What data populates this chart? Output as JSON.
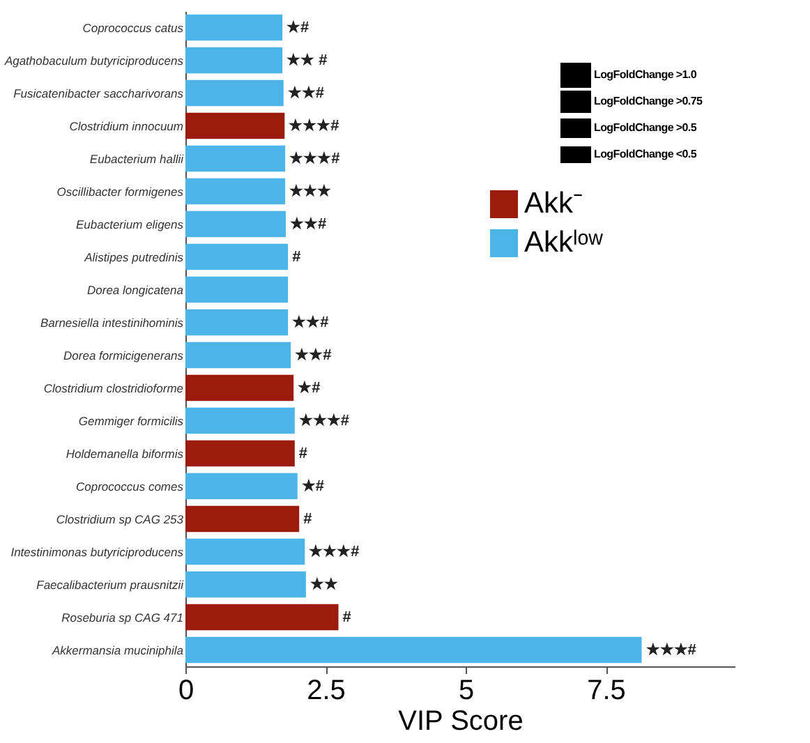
{
  "chart_data": {
    "type": "bar",
    "orientation": "horizontal",
    "xlabel": "VIP Score",
    "categories": [
      "Coprococcus catus",
      "Agathobaculum butyriciproducens",
      "Fusicatenibacter saccharivorans",
      "Clostridium innocuum",
      "Eubacterium hallii",
      "Oscillibacter formigenes",
      "Eubacterium eligens",
      "Alistipes putredinis",
      "Dorea longicatena",
      "Barnesiella intestinihominis",
      "Dorea formicigenerans",
      "Clostridium clostridioforme",
      "Gemmiger formicilis",
      "Holdemanella biformis",
      "Coprococcus comes",
      "Clostridium sp CAG 253",
      "Intestinimonas butyriciproducens",
      "Faecalibacterium prausnitzii",
      "Roseburia sp CAG 471",
      "Akkermansia muciniphila"
    ],
    "series": [
      {
        "name": "Akk⁻",
        "color": "#9b1c0c",
        "values": [
          null,
          null,
          null,
          1.77,
          null,
          null,
          null,
          null,
          null,
          null,
          null,
          1.93,
          null,
          1.95,
          null,
          2.03,
          null,
          null,
          2.73,
          null
        ]
      },
      {
        "name": "Akkˡᵒʷ",
        "color": "#4cb4e6",
        "values": [
          1.73,
          1.73,
          1.75,
          null,
          1.78,
          1.78,
          1.79,
          1.83,
          1.83,
          1.83,
          1.88,
          null,
          1.95,
          null,
          2.0,
          null,
          2.13,
          2.15,
          null,
          8.14
        ]
      }
    ],
    "xlim": [
      0,
      9.8
    ],
    "xticks": [
      0,
      2.5,
      5,
      7.5
    ],
    "legend": "top right",
    "annotations": [
      "LogFoldChange >1.0",
      "LogFoldChange >0.75",
      "LogFoldChange >0.5",
      "LogFoldChange <0.5",
      {
        "text": "★#",
        "x": 1.73,
        "y": "Coprococcus catus"
      },
      {
        "text": "★★ #",
        "x": 1.73,
        "y": "Agathobaculum butyriciproducens"
      },
      {
        "text": "★★#",
        "x": 1.75,
        "y": "Fusicatenibacter saccharivorans"
      },
      {
        "text": "★★★#",
        "x": 1.77,
        "y": "Clostridium innocuum"
      },
      {
        "text": "★★★#",
        "x": 1.78,
        "y": "Eubacterium hallii"
      },
      {
        "text": "★★★",
        "x": 1.78,
        "y": "Oscillibacter formigenes"
      },
      {
        "text": "★★#",
        "x": 1.79,
        "y": "Eubacterium eligens"
      },
      {
        "text": "#",
        "x": 1.83,
        "y": "Alistipes putredinis"
      },
      {
        "text": "★★#",
        "x": 1.83,
        "y": "Barnesiella intestinihominis"
      },
      {
        "text": "★★#",
        "x": 1.88,
        "y": "Dorea formicigenerans"
      },
      {
        "text": "★#",
        "x": 1.93,
        "y": "Clostridium clostridioforme"
      },
      {
        "text": "★★★#",
        "x": 1.95,
        "y": "Gemmiger formicilis"
      },
      {
        "text": "#",
        "x": 1.95,
        "y": "Holdemanella biformis"
      },
      {
        "text": "★#",
        "x": 2.0,
        "y": "Coprococcus comes"
      },
      {
        "text": "#",
        "x": 2.03,
        "y": "Clostridium sp CAG 253"
      },
      {
        "text": "★★★#",
        "x": 2.13,
        "y": "Intestinimonas butyriciproducens"
      },
      {
        "text": "★★",
        "x": 2.15,
        "y": "Faecalibacterium prausnitzii"
      },
      {
        "text": "#",
        "x": 2.73,
        "y": "Roseburia sp CAG 471"
      },
      {
        "text": "★★★#",
        "x": 8.14,
        "y": "Akkermansia muciniphila"
      }
    ]
  }
}
